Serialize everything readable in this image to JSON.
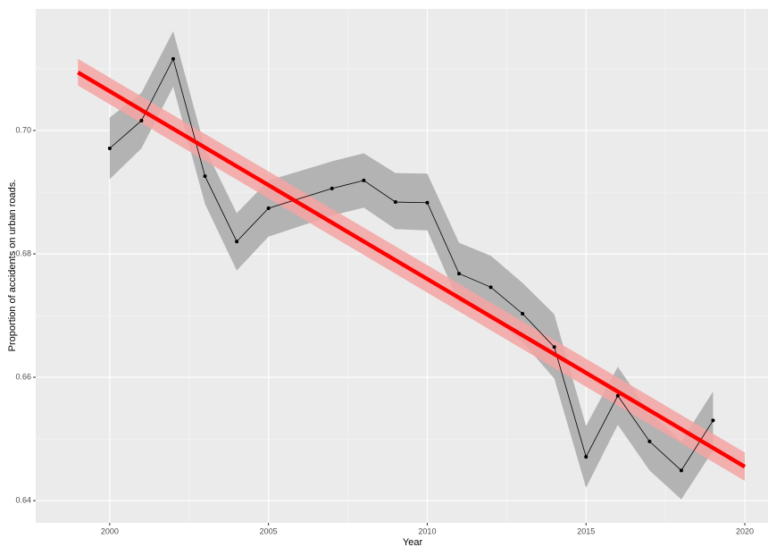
{
  "chart_data": {
    "type": "line",
    "x_label": "Year",
    "y_label": "Proportion of accidents on urban roads.",
    "x": [
      2000,
      2001,
      2002,
      2003,
      2004,
      2005,
      2007,
      2008,
      2009,
      2010,
      2011,
      2012,
      2013,
      2014,
      2015,
      2016,
      2017,
      2018,
      2019
    ],
    "series": [
      {
        "color": "#000000",
        "band_color": "#b3b3b3",
        "values": [
          0.6971,
          0.7016,
          0.7116,
          0.6926,
          0.682,
          0.6874,
          0.6906,
          0.6919,
          0.6884,
          0.6883,
          0.6768,
          0.6746,
          0.6703,
          0.6649,
          0.6471,
          0.657,
          0.6496,
          0.6449,
          0.653
        ],
        "lower": [
          0.6921,
          0.6971,
          0.7071,
          0.6881,
          0.6773,
          0.6828,
          0.6862,
          0.6875,
          0.684,
          0.6838,
          0.6721,
          0.6701,
          0.6657,
          0.6598,
          0.6421,
          0.6523,
          0.6449,
          0.6402,
          0.6481
        ],
        "upper": [
          0.7021,
          0.7061,
          0.7161,
          0.6971,
          0.6866,
          0.6919,
          0.695,
          0.6963,
          0.6931,
          0.693,
          0.6818,
          0.6797,
          0.6753,
          0.6702,
          0.6521,
          0.6617,
          0.6543,
          0.6496,
          0.6577
        ]
      }
    ],
    "trend": {
      "color": "#ff0000",
      "band_color": "#f4a3a3",
      "x": [
        1999,
        2020
      ],
      "values": [
        0.7094,
        0.6455
      ],
      "lower": [
        0.7073,
        0.6432
      ],
      "upper": [
        0.7116,
        0.6478
      ]
    },
    "xlim": [
      1997.67,
      2020.73
    ],
    "ylim": [
      0.6364,
      0.7197
    ],
    "xticks": [
      2000,
      2005,
      2010,
      2015,
      2020
    ],
    "yticks": [
      0.64,
      0.66,
      0.68,
      {
        "value": 0.7,
        "label": "0.70"
      }
    ],
    "grid": true
  }
}
